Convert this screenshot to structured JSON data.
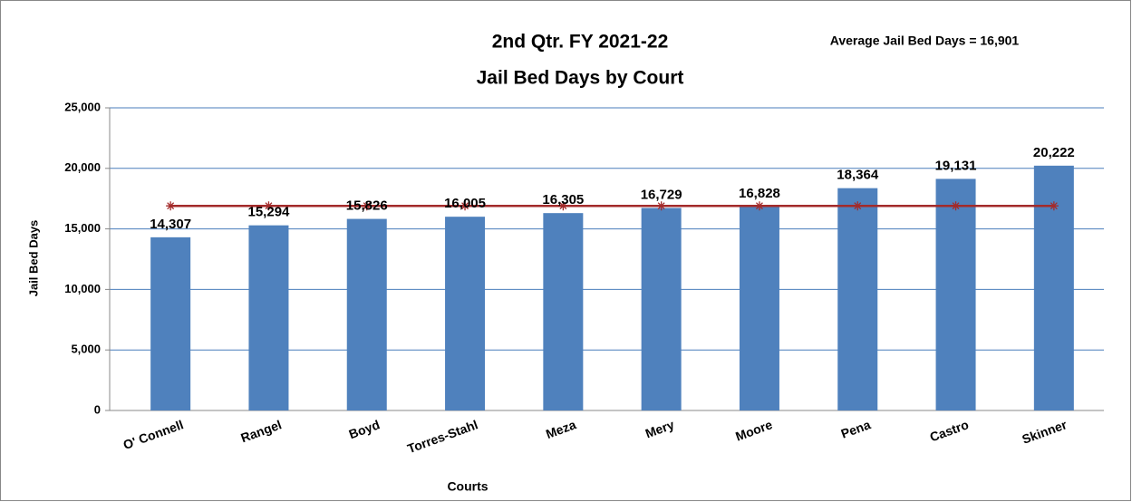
{
  "chart_data": {
    "type": "bar",
    "title": "2nd Qtr. FY 2021-22",
    "subtitle": "Jail Bed Days by Court",
    "annotation": "Average Jail Bed Days = 16,901",
    "x_label": "Courts",
    "y_label": "Jail Bed Days",
    "categories": [
      "O' Connell",
      "Rangel",
      "Boyd",
      "Torres-Stahl",
      "Meza",
      "Mery",
      "Moore",
      "Pena",
      "Castro",
      "Skinner"
    ],
    "series": [
      {
        "type": "bar",
        "color": "#4f81bd",
        "values": [
          14307,
          15294,
          15826,
          16005,
          16305,
          16729,
          16828,
          18364,
          19131,
          20222
        ],
        "value_labels": [
          "14,307",
          "15,294",
          "15,826",
          "16,005",
          "16,305",
          "16,729",
          "16,828",
          "18,364",
          "19,131",
          "20,222"
        ]
      },
      {
        "type": "line",
        "color": "#a32b2b",
        "values": [
          16901,
          16901,
          16901,
          16901,
          16901,
          16901,
          16901,
          16901,
          16901,
          16901
        ]
      }
    ],
    "ylim": [
      0,
      25000
    ],
    "yticks": [
      0,
      {
        "value": 5000,
        "label": "5,000"
      },
      {
        "value": 10000,
        "label": "10,000"
      },
      {
        "value": 15000,
        "label": "15,000"
      },
      {
        "value": 20000,
        "label": "20,000"
      },
      {
        "value": 25000,
        "label": "25,000"
      }
    ],
    "grid": true
  }
}
